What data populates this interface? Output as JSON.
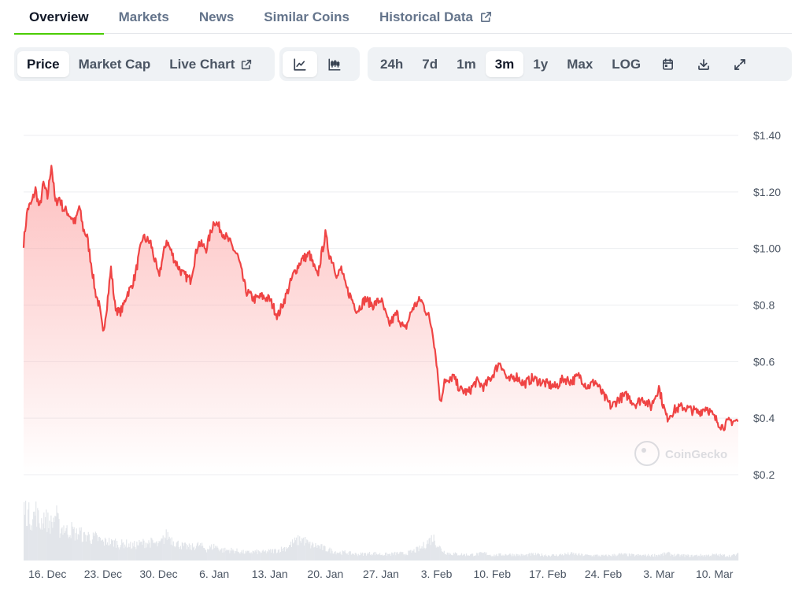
{
  "tabs": [
    {
      "label": "Overview",
      "active": true
    },
    {
      "label": "Markets"
    },
    {
      "label": "News"
    },
    {
      "label": "Similar Coins"
    },
    {
      "label": "Historical Data",
      "icon": "external-link-icon"
    }
  ],
  "toolbar": {
    "metric_buttons": [
      {
        "label": "Price",
        "selected": true
      },
      {
        "label": "Market Cap"
      },
      {
        "label": "Live Chart",
        "icon": "external-link-icon"
      }
    ],
    "chart_style_buttons": [
      {
        "icon": "line-chart-icon",
        "selected": true
      },
      {
        "icon": "candlestick-chart-icon"
      }
    ],
    "range_buttons": [
      {
        "label": "24h"
      },
      {
        "label": "7d"
      },
      {
        "label": "1m"
      },
      {
        "label": "3m",
        "selected": true
      },
      {
        "label": "1y"
      },
      {
        "label": "Max"
      },
      {
        "label": "LOG"
      }
    ],
    "action_icons": [
      "calendar-icon",
      "download-icon",
      "fullscreen-icon"
    ]
  },
  "watermark": "CoinGecko",
  "colors": {
    "line": "#ef4444",
    "fill": "#fca5a5",
    "volume": "#e2e5ea",
    "grid": "#eceef1",
    "accent": "#4bcc00"
  },
  "chart_data": {
    "type": "area",
    "y_ticks": [
      "$1.40",
      "$1.20",
      "$1.00",
      "$0.8",
      "$0.6",
      "$0.4",
      "$0.2"
    ],
    "ylim": [
      0.2,
      1.4
    ],
    "x_ticks": [
      "16. Dec",
      "23. Dec",
      "30. Dec",
      "6. Jan",
      "13. Jan",
      "20. Jan",
      "27. Jan",
      "3. Feb",
      "10. Feb",
      "17. Feb",
      "24. Feb",
      "3. Mar",
      "10. Mar"
    ],
    "x_tick_days": [
      3,
      10,
      17,
      24,
      31,
      38,
      45,
      52,
      59,
      66,
      73,
      80,
      87
    ],
    "xlim": [
      0,
      90
    ],
    "grid": true,
    "series": [
      {
        "x": [
          0,
          0.5,
          1,
          1.5,
          2,
          2.5,
          3,
          3.5,
          4,
          4.5,
          5,
          5.5,
          6,
          6.5,
          7,
          7.5,
          8,
          8.5,
          9,
          9.5,
          10,
          10.5,
          11,
          11.5,
          12,
          12.5,
          13,
          13.5,
          14,
          15,
          16,
          17,
          18,
          19,
          20,
          21,
          22,
          23,
          24,
          25,
          26,
          27,
          28,
          29,
          30,
          31,
          32,
          33,
          34,
          35,
          36,
          37,
          38,
          38.5,
          39,
          39.5,
          40,
          40.5,
          41,
          42,
          43,
          44,
          45,
          46,
          47,
          48,
          49,
          50,
          51,
          51.5,
          52,
          52.5,
          53,
          53.5,
          54,
          55,
          56,
          57,
          58,
          59,
          60,
          61,
          62,
          63,
          64,
          65,
          66,
          67,
          68,
          69,
          70,
          71,
          72,
          73,
          74,
          75,
          76,
          77,
          78,
          79,
          80,
          80.5,
          81,
          82,
          83,
          84,
          85,
          86,
          87,
          88,
          89,
          90
        ],
        "price": [
          1.02,
          1.14,
          1.16,
          1.21,
          1.14,
          1.23,
          1.18,
          1.3,
          1.16,
          1.18,
          1.14,
          1.13,
          1.11,
          1.09,
          1.15,
          1.07,
          1.04,
          0.95,
          0.85,
          0.8,
          0.7,
          0.8,
          0.93,
          0.8,
          0.77,
          0.79,
          0.84,
          0.86,
          0.9,
          1.04,
          1.02,
          0.9,
          1.03,
          0.96,
          0.91,
          0.89,
          1.02,
          1.0,
          1.1,
          1.06,
          1.02,
          0.97,
          0.85,
          0.82,
          0.83,
          0.82,
          0.76,
          0.83,
          0.91,
          0.96,
          0.98,
          0.9,
          1.05,
          0.98,
          0.95,
          0.9,
          0.93,
          0.87,
          0.84,
          0.78,
          0.82,
          0.8,
          0.82,
          0.73,
          0.77,
          0.71,
          0.79,
          0.82,
          0.76,
          0.71,
          0.6,
          0.45,
          0.54,
          0.52,
          0.55,
          0.5,
          0.49,
          0.53,
          0.51,
          0.55,
          0.6,
          0.53,
          0.55,
          0.52,
          0.54,
          0.53,
          0.52,
          0.51,
          0.54,
          0.53,
          0.55,
          0.51,
          0.53,
          0.48,
          0.44,
          0.47,
          0.48,
          0.45,
          0.47,
          0.44,
          0.51,
          0.45,
          0.4,
          0.43,
          0.44,
          0.43,
          0.42,
          0.44,
          0.4,
          0.37,
          0.39,
          0.39
        ],
        "volume": [
          1.0,
          0.9,
          0.8,
          0.95,
          0.7,
          0.85,
          0.75,
          0.7,
          0.9,
          0.6,
          0.65,
          0.55,
          0.6,
          0.5,
          0.55,
          0.45,
          0.5,
          0.42,
          0.45,
          0.4,
          0.35,
          0.38,
          0.34,
          0.36,
          0.3,
          0.33,
          0.32,
          0.28,
          0.3,
          0.34,
          0.35,
          0.3,
          0.5,
          0.35,
          0.28,
          0.25,
          0.3,
          0.22,
          0.28,
          0.2,
          0.2,
          0.18,
          0.15,
          0.17,
          0.16,
          0.18,
          0.2,
          0.25,
          0.35,
          0.42,
          0.3,
          0.28,
          0.22,
          0.2,
          0.18,
          0.16,
          0.15,
          0.16,
          0.14,
          0.12,
          0.13,
          0.14,
          0.12,
          0.12,
          0.14,
          0.13,
          0.18,
          0.24,
          0.38,
          0.45,
          0.32,
          0.22,
          0.16,
          0.14,
          0.13,
          0.12,
          0.11,
          0.12,
          0.14,
          0.1,
          0.11,
          0.12,
          0.11,
          0.1,
          0.12,
          0.11,
          0.1,
          0.1,
          0.12,
          0.13,
          0.11,
          0.1,
          0.1,
          0.09,
          0.1,
          0.12,
          0.11,
          0.1,
          0.1,
          0.1,
          0.11,
          0.12,
          0.14,
          0.1,
          0.1,
          0.09,
          0.1,
          0.1,
          0.11,
          0.1,
          0.09,
          0.12
        ]
      }
    ]
  }
}
